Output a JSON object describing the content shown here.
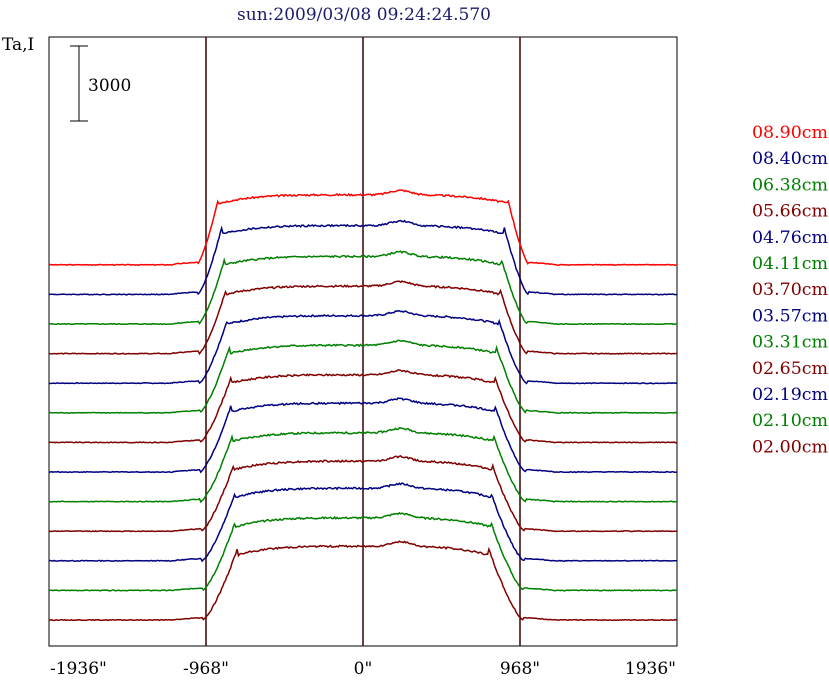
{
  "title": "sun:2009/03/08 09:24:24.570",
  "y_axis_label": "Ta,I",
  "scale_bar_label": "3000",
  "chart_data": {
    "type": "line",
    "title": "sun:2009/03/08 09:24:24.570",
    "xlabel": "",
    "ylabel": "Ta,I",
    "x_ticks": [
      "-1936\"",
      "-968\"",
      "0\"",
      "968\"",
      "1936\""
    ],
    "x_tick_values": [
      -1936,
      -968,
      0,
      968,
      1936
    ],
    "xlim": [
      -1936,
      1936
    ],
    "vertical_markers": [
      -968,
      0,
      968
    ],
    "scale_bar_value": 3000,
    "grid": false,
    "legend_position": "right",
    "series": [
      {
        "name": "08.90cm",
        "color": "#ff0000",
        "offset": 12,
        "quiet": 0,
        "disk": 2800,
        "limb_width": 55,
        "limb_inside": 0.92
      },
      {
        "name": "08.40cm",
        "color": "#000080",
        "offset": 11,
        "quiet": 0,
        "disk": 2750,
        "limb_width": 50,
        "limb_inside": 0.9
      },
      {
        "name": "06.38cm",
        "color": "#008000",
        "offset": 10,
        "quiet": 0,
        "disk": 2700,
        "limb_width": 45,
        "limb_inside": 0.88
      },
      {
        "name": "05.66cm",
        "color": "#800000",
        "offset": 9,
        "quiet": 0,
        "disk": 2700,
        "limb_width": 42,
        "limb_inside": 0.87
      },
      {
        "name": "04.76cm",
        "color": "#000080",
        "offset": 8,
        "quiet": 0,
        "disk": 2700,
        "limb_width": 40,
        "limb_inside": 0.86
      },
      {
        "name": "04.11cm",
        "color": "#008000",
        "offset": 7,
        "quiet": 0,
        "disk": 2700,
        "limb_width": 38,
        "limb_inside": 0.85
      },
      {
        "name": "03.70cm",
        "color": "#800000",
        "offset": 6,
        "quiet": 0,
        "disk": 2700,
        "limb_width": 36,
        "limb_inside": 0.84
      },
      {
        "name": "03.57cm",
        "color": "#000080",
        "offset": 5,
        "quiet": 0,
        "disk": 2750,
        "limb_width": 34,
        "limb_inside": 0.84
      },
      {
        "name": "03.31cm",
        "color": "#008000",
        "offset": 4,
        "quiet": 0,
        "disk": 2750,
        "limb_width": 32,
        "limb_inside": 0.83
      },
      {
        "name": "02.65cm",
        "color": "#800000",
        "offset": 3,
        "quiet": 0,
        "disk": 2800,
        "limb_width": 28,
        "limb_inside": 0.82
      },
      {
        "name": "02.19cm",
        "color": "#000080",
        "offset": 2,
        "quiet": 0,
        "disk": 2900,
        "limb_width": 24,
        "limb_inside": 0.81
      },
      {
        "name": "02.10cm",
        "color": "#008000",
        "offset": 1,
        "quiet": 0,
        "disk": 2900,
        "limb_width": 22,
        "limb_inside": 0.81
      },
      {
        "name": "02.00cm",
        "color": "#800000",
        "offset": 0,
        "quiet": 0,
        "disk": 2950,
        "limb_width": 20,
        "limb_inside": 0.8
      }
    ]
  }
}
